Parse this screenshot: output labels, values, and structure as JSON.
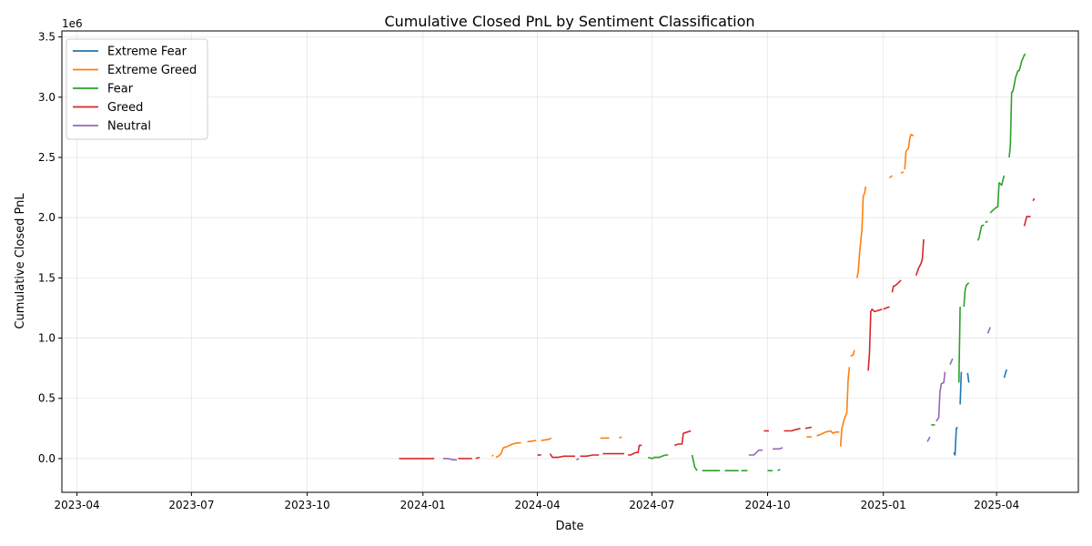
{
  "chart_data": {
    "type": "line",
    "title": "Cumulative Closed PnL by Sentiment Classification",
    "xlabel": "Date",
    "ylabel": "Cumulative Closed PnL",
    "y_multiplier_label": "1e6",
    "xlim": [
      "2023-03-20",
      "2025-06-05"
    ],
    "ylim": [
      -0.28,
      3.55
    ],
    "x_ticks": [
      "2023-04",
      "2023-07",
      "2023-10",
      "2024-01",
      "2024-04",
      "2024-07",
      "2024-10",
      "2025-01",
      "2025-04"
    ],
    "x_tick_dates": [
      "2023-04-01",
      "2023-07-01",
      "2023-10-01",
      "2024-01-01",
      "2024-04-01",
      "2024-07-01",
      "2024-10-01",
      "2025-01-01",
      "2025-04-01"
    ],
    "y_ticks": [
      "0.0",
      "0.5",
      "1.0",
      "1.5",
      "2.0",
      "2.5",
      "3.0",
      "3.5"
    ],
    "y_tick_values": [
      0.0,
      0.5,
      1.0,
      1.5,
      2.0,
      2.5,
      3.0,
      3.5
    ],
    "grid": true,
    "legend_position": "upper-left",
    "series": [
      {
        "name": "Extreme Fear",
        "color": "#1f77b4",
        "segments": [
          [
            [
              "2025-02-26",
              0.05
            ],
            [
              "2025-02-27",
              0.03
            ],
            [
              "2025-02-28",
              0.25
            ],
            [
              "2025-03-01",
              0.26
            ]
          ],
          [
            [
              "2025-03-03",
              0.45
            ],
            [
              "2025-03-04",
              0.72
            ]
          ],
          [
            [
              "2025-03-09",
              0.71
            ],
            [
              "2025-03-10",
              0.63
            ]
          ],
          [
            [
              "2025-04-07",
              0.67
            ],
            [
              "2025-04-09",
              0.74
            ]
          ]
        ]
      },
      {
        "name": "Extreme Greed",
        "color": "#ff7f0e",
        "segments": [
          [
            [
              "2024-02-25",
              0.02
            ],
            [
              "2024-02-26",
              0.03
            ]
          ],
          [
            [
              "2024-02-28",
              0.01
            ],
            [
              "2024-03-01",
              0.02
            ],
            [
              "2024-03-03",
              0.04
            ],
            [
              "2024-03-05",
              0.09
            ],
            [
              "2024-03-08",
              0.1
            ],
            [
              "2024-03-12",
              0.12
            ],
            [
              "2024-03-16",
              0.13
            ],
            [
              "2024-03-19",
              0.13
            ]
          ],
          [
            [
              "2024-03-24",
              0.14
            ],
            [
              "2024-03-31",
              0.15
            ]
          ],
          [
            [
              "2024-04-04",
              0.15
            ],
            [
              "2024-04-10",
              0.16
            ],
            [
              "2024-04-12",
              0.17
            ]
          ],
          [
            [
              "2024-05-21",
              0.17
            ],
            [
              "2024-05-28",
              0.17
            ]
          ],
          [
            [
              "2024-06-05",
              0.17
            ],
            [
              "2024-06-07",
              0.18
            ]
          ],
          [
            [
              "2024-11-01",
              0.18
            ],
            [
              "2024-11-05",
              0.18
            ]
          ],
          [
            [
              "2024-11-09",
              0.19
            ],
            [
              "2024-11-12",
              0.2
            ],
            [
              "2024-11-16",
              0.22
            ],
            [
              "2024-11-20",
              0.23
            ],
            [
              "2024-11-22",
              0.21
            ],
            [
              "2024-11-24",
              0.22
            ],
            [
              "2024-11-27",
              0.22
            ]
          ],
          [
            [
              "2024-11-28",
              0.1
            ],
            [
              "2024-11-29",
              0.25
            ],
            [
              "2024-12-01",
              0.33
            ],
            [
              "2024-12-03",
              0.38
            ],
            [
              "2024-12-04",
              0.65
            ],
            [
              "2024-12-05",
              0.76
            ]
          ],
          [
            [
              "2024-12-06",
              0.85
            ],
            [
              "2024-12-08",
              0.86
            ],
            [
              "2024-12-09",
              0.9
            ]
          ],
          [
            [
              "2024-12-11",
              1.5
            ],
            [
              "2024-12-12",
              1.55
            ],
            [
              "2024-12-13",
              1.7
            ],
            [
              "2024-12-15",
              1.9
            ],
            [
              "2024-12-16",
              2.18
            ],
            [
              "2024-12-17",
              2.2
            ],
            [
              "2024-12-18",
              2.26
            ]
          ],
          [
            [
              "2025-01-06",
              2.33
            ],
            [
              "2025-01-08",
              2.35
            ]
          ],
          [
            [
              "2025-01-15",
              2.37
            ],
            [
              "2025-01-17",
              2.38
            ]
          ],
          [
            [
              "2025-01-18",
              2.4
            ],
            [
              "2025-01-19",
              2.55
            ],
            [
              "2025-01-21",
              2.58
            ],
            [
              "2025-01-22",
              2.66
            ],
            [
              "2025-01-23",
              2.69
            ],
            [
              "2025-01-25",
              2.68
            ]
          ]
        ]
      },
      {
        "name": "Fear",
        "color": "#2ca02c",
        "segments": [
          [
            [
              "2024-06-28",
              0.01
            ],
            [
              "2024-07-01",
              0.0
            ],
            [
              "2024-07-03",
              0.01
            ],
            [
              "2024-07-07",
              0.01
            ],
            [
              "2024-07-09",
              0.02
            ],
            [
              "2024-07-12",
              0.03
            ],
            [
              "2024-07-14",
              0.03
            ]
          ],
          [
            [
              "2024-08-02",
              0.03
            ],
            [
              "2024-08-04",
              -0.07
            ],
            [
              "2024-08-06",
              -0.1
            ]
          ],
          [
            [
              "2024-08-10",
              -0.1
            ],
            [
              "2024-08-15",
              -0.1
            ],
            [
              "2024-08-20",
              -0.1
            ],
            [
              "2024-08-24",
              -0.1
            ]
          ],
          [
            [
              "2024-08-28",
              -0.1
            ],
            [
              "2024-09-05",
              -0.1
            ],
            [
              "2024-09-08",
              -0.1
            ]
          ],
          [
            [
              "2024-09-10",
              -0.1
            ],
            [
              "2024-09-15",
              -0.1
            ]
          ],
          [
            [
              "2024-10-01",
              -0.1
            ],
            [
              "2024-10-05",
              -0.1
            ]
          ],
          [
            [
              "2024-10-09",
              -0.1
            ],
            [
              "2024-10-11",
              -0.09
            ]
          ],
          [
            [
              "2025-02-08",
              0.28
            ],
            [
              "2025-02-11",
              0.28
            ]
          ],
          [
            [
              "2025-03-02",
              0.63
            ],
            [
              "2025-03-03",
              1.26
            ]
          ],
          [
            [
              "2025-03-06",
              1.26
            ],
            [
              "2025-03-07",
              1.4
            ],
            [
              "2025-03-08",
              1.44
            ],
            [
              "2025-03-10",
              1.46
            ]
          ],
          [
            [
              "2025-03-17",
              1.81
            ],
            [
              "2025-03-18",
              1.83
            ],
            [
              "2025-03-20",
              1.93
            ],
            [
              "2025-03-22",
              1.94
            ]
          ],
          [
            [
              "2025-03-23",
              1.96
            ],
            [
              "2025-03-25",
              1.97
            ]
          ],
          [
            [
              "2025-03-27",
              2.04
            ],
            [
              "2025-03-29",
              2.06
            ],
            [
              "2025-03-31",
              2.08
            ],
            [
              "2025-04-02",
              2.09
            ],
            [
              "2025-04-03",
              2.29
            ],
            [
              "2025-04-05",
              2.27
            ],
            [
              "2025-04-07",
              2.35
            ]
          ],
          [
            [
              "2025-04-11",
              2.5
            ],
            [
              "2025-04-12",
              2.6
            ],
            [
              "2025-04-13",
              3.04
            ],
            [
              "2025-04-14",
              3.05
            ],
            [
              "2025-04-15",
              3.1
            ],
            [
              "2025-04-16",
              3.16
            ],
            [
              "2025-04-18",
              3.22
            ],
            [
              "2025-04-19",
              3.22
            ],
            [
              "2025-04-21",
              3.3
            ],
            [
              "2025-04-23",
              3.35
            ],
            [
              "2025-04-24",
              3.36
            ]
          ]
        ]
      },
      {
        "name": "Greed",
        "color": "#d62728",
        "segments": [
          [
            [
              "2023-12-13",
              0.0
            ],
            [
              "2023-12-18",
              0.0
            ],
            [
              "2023-12-23",
              0.0
            ],
            [
              "2023-12-28",
              0.0
            ],
            [
              "2024-01-02",
              0.0
            ],
            [
              "2024-01-07",
              0.0
            ],
            [
              "2024-01-10",
              0.0
            ]
          ],
          [
            [
              "2024-01-29",
              0.0
            ],
            [
              "2024-02-04",
              0.0
            ],
            [
              "2024-02-09",
              0.0
            ]
          ],
          [
            [
              "2024-02-12",
              0.0
            ],
            [
              "2024-02-15",
              0.01
            ]
          ],
          [
            [
              "2024-04-01",
              0.03
            ],
            [
              "2024-04-04",
              0.03
            ]
          ],
          [
            [
              "2024-04-11",
              0.04
            ],
            [
              "2024-04-13",
              0.01
            ],
            [
              "2024-04-17",
              0.01
            ],
            [
              "2024-04-22",
              0.02
            ],
            [
              "2024-04-27",
              0.02
            ],
            [
              "2024-05-01",
              0.02
            ]
          ],
          [
            [
              "2024-05-05",
              0.02
            ],
            [
              "2024-05-10",
              0.02
            ],
            [
              "2024-05-15",
              0.03
            ],
            [
              "2024-05-20",
              0.03
            ]
          ],
          [
            [
              "2024-05-23",
              0.04
            ],
            [
              "2024-05-28",
              0.04
            ],
            [
              "2024-06-03",
              0.04
            ],
            [
              "2024-06-09",
              0.04
            ]
          ],
          [
            [
              "2024-06-12",
              0.03
            ],
            [
              "2024-06-14",
              0.03
            ],
            [
              "2024-06-18",
              0.05
            ],
            [
              "2024-06-20",
              0.05
            ],
            [
              "2024-06-21",
              0.11
            ],
            [
              "2024-06-23",
              0.11
            ]
          ],
          [
            [
              "2024-07-19",
              0.11
            ],
            [
              "2024-07-22",
              0.12
            ],
            [
              "2024-07-25",
              0.12
            ],
            [
              "2024-07-26",
              0.21
            ],
            [
              "2024-07-29",
              0.22
            ],
            [
              "2024-08-01",
              0.23
            ]
          ],
          [
            [
              "2024-09-28",
              0.23
            ],
            [
              "2024-10-02",
              0.23
            ]
          ],
          [
            [
              "2024-10-14",
              0.23
            ],
            [
              "2024-10-20",
              0.23
            ],
            [
              "2024-10-23",
              0.24
            ],
            [
              "2024-10-27",
              0.25
            ]
          ],
          [
            [
              "2024-10-31",
              0.25
            ],
            [
              "2024-11-05",
              0.26
            ]
          ],
          [
            [
              "2024-12-20",
              0.73
            ],
            [
              "2024-12-21",
              0.88
            ],
            [
              "2024-12-22",
              1.22
            ],
            [
              "2024-12-23",
              1.24
            ],
            [
              "2024-12-25",
              1.22
            ],
            [
              "2024-12-28",
              1.23
            ],
            [
              "2024-12-31",
              1.24
            ]
          ],
          [
            [
              "2025-01-01",
              1.24
            ],
            [
              "2025-01-03",
              1.25
            ],
            [
              "2025-01-06",
              1.26
            ]
          ],
          [
            [
              "2025-01-08",
              1.38
            ],
            [
              "2025-01-09",
              1.43
            ],
            [
              "2025-01-11",
              1.44
            ],
            [
              "2025-01-13",
              1.46
            ],
            [
              "2025-01-15",
              1.48
            ]
          ],
          [
            [
              "2025-01-27",
              1.52
            ],
            [
              "2025-01-29",
              1.58
            ],
            [
              "2025-01-31",
              1.62
            ],
            [
              "2025-02-01",
              1.66
            ],
            [
              "2025-02-02",
              1.82
            ]
          ],
          [
            [
              "2025-04-23",
              1.93
            ],
            [
              "2025-04-25",
              2.01
            ],
            [
              "2025-04-28",
              2.01
            ]
          ],
          [
            [
              "2025-04-30",
              2.14
            ],
            [
              "2025-05-01",
              2.16
            ]
          ]
        ]
      },
      {
        "name": "Neutral",
        "color": "#9467bd",
        "segments": [
          [
            [
              "2024-01-17",
              0.0
            ],
            [
              "2024-01-21",
              0.0
            ],
            [
              "2024-01-25",
              -0.01
            ],
            [
              "2024-01-28",
              -0.01
            ]
          ],
          [
            [
              "2024-05-02",
              -0.01
            ],
            [
              "2024-05-04",
              0.0
            ]
          ],
          [
            [
              "2024-09-16",
              0.03
            ],
            [
              "2024-09-20",
              0.03
            ],
            [
              "2024-09-22",
              0.05
            ],
            [
              "2024-09-24",
              0.07
            ],
            [
              "2024-09-27",
              0.07
            ]
          ],
          [
            [
              "2024-10-05",
              0.08
            ],
            [
              "2024-10-10",
              0.08
            ],
            [
              "2024-10-13",
              0.09
            ]
          ],
          [
            [
              "2025-02-05",
              0.14
            ],
            [
              "2025-02-07",
              0.18
            ]
          ],
          [
            [
              "2025-02-12",
              0.31
            ],
            [
              "2025-02-14",
              0.34
            ],
            [
              "2025-02-15",
              0.55
            ],
            [
              "2025-02-16",
              0.62
            ],
            [
              "2025-02-18",
              0.63
            ],
            [
              "2025-02-19",
              0.72
            ]
          ],
          [
            [
              "2025-02-23",
              0.78
            ],
            [
              "2025-02-25",
              0.83
            ]
          ],
          [
            [
              "2025-03-25",
              1.04
            ],
            [
              "2025-03-27",
              1.09
            ]
          ]
        ]
      }
    ]
  }
}
